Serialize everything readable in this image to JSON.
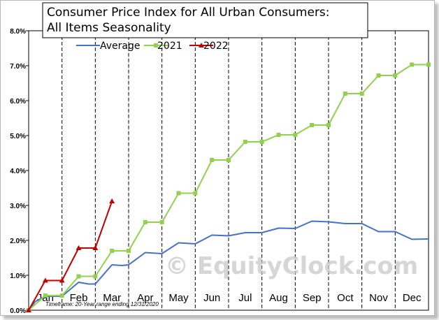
{
  "chart_data": {
    "type": "line",
    "title_lines": [
      "Consumer Price Index for All Urban Consumers:",
      "All Items Seasonality"
    ],
    "months": [
      "Jan",
      "Feb",
      "Mar",
      "Apr",
      "May",
      "Jun",
      "Jul",
      "Aug",
      "Sep",
      "Oct",
      "Nov",
      "Dec"
    ],
    "y_ticks": [
      "0.0%",
      "1.0%",
      "2.0%",
      "3.0%",
      "4.0%",
      "5.0%",
      "6.0%",
      "7.0%",
      "8.0%"
    ],
    "ylim": [
      0,
      8
    ],
    "xlim": [
      0,
      12
    ],
    "grid": "vertical dashed lines at month boundaries",
    "legend_position": "top",
    "series": [
      {
        "name": "Average",
        "color": "#4472c4",
        "points": [
          [
            0,
            0
          ],
          [
            0.2,
            0.25
          ],
          [
            0.5,
            0.4
          ],
          [
            1.0,
            0.4
          ],
          [
            1.5,
            0.8
          ],
          [
            1.8,
            0.75
          ],
          [
            2.0,
            0.75
          ],
          [
            2.5,
            1.3
          ],
          [
            2.8,
            1.28
          ],
          [
            3.0,
            1.3
          ],
          [
            3.5,
            1.65
          ],
          [
            4.0,
            1.62
          ],
          [
            4.5,
            1.93
          ],
          [
            5.0,
            1.9
          ],
          [
            5.5,
            2.15
          ],
          [
            6.0,
            2.13
          ],
          [
            6.5,
            2.22
          ],
          [
            7.0,
            2.22
          ],
          [
            7.5,
            2.35
          ],
          [
            8.0,
            2.34
          ],
          [
            8.5,
            2.55
          ],
          [
            9.0,
            2.53
          ],
          [
            9.5,
            2.48
          ],
          [
            10.0,
            2.48
          ],
          [
            10.5,
            2.25
          ],
          [
            11.0,
            2.25
          ],
          [
            11.5,
            2.03
          ],
          [
            12.0,
            2.04
          ]
        ]
      },
      {
        "name": "2021",
        "color": "#92d050",
        "marker": "square",
        "points": [
          [
            0,
            0
          ],
          [
            0.0,
            0.0
          ],
          [
            0.5,
            0.42
          ],
          [
            1.0,
            0.42
          ],
          [
            1.5,
            0.97
          ],
          [
            2.0,
            0.97
          ],
          [
            2.5,
            1.7
          ],
          [
            3.0,
            1.7
          ],
          [
            3.5,
            2.52
          ],
          [
            4.0,
            2.52
          ],
          [
            4.5,
            3.35
          ],
          [
            5.0,
            3.35
          ],
          [
            5.5,
            4.3
          ],
          [
            6.0,
            4.3
          ],
          [
            6.5,
            4.82
          ],
          [
            7.0,
            4.82
          ],
          [
            7.5,
            5.02
          ],
          [
            8.0,
            5.02
          ],
          [
            8.5,
            5.3
          ],
          [
            9.0,
            5.3
          ],
          [
            9.5,
            6.2
          ],
          [
            10.0,
            6.2
          ],
          [
            10.5,
            6.72
          ],
          [
            11.0,
            6.72
          ],
          [
            11.5,
            7.03
          ],
          [
            12.0,
            7.03
          ]
        ]
      },
      {
        "name": "2022",
        "color": "#c00000",
        "marker": "triangle",
        "points": [
          [
            0,
            0
          ],
          [
            0.5,
            0.85
          ],
          [
            1.0,
            0.85
          ],
          [
            1.5,
            1.78
          ],
          [
            2.0,
            1.78
          ],
          [
            2.5,
            3.12
          ]
        ]
      }
    ]
  },
  "footnote": "Timeframe: 20-Year range ending 12/31/2020",
  "watermark": "© EquityClock.com"
}
